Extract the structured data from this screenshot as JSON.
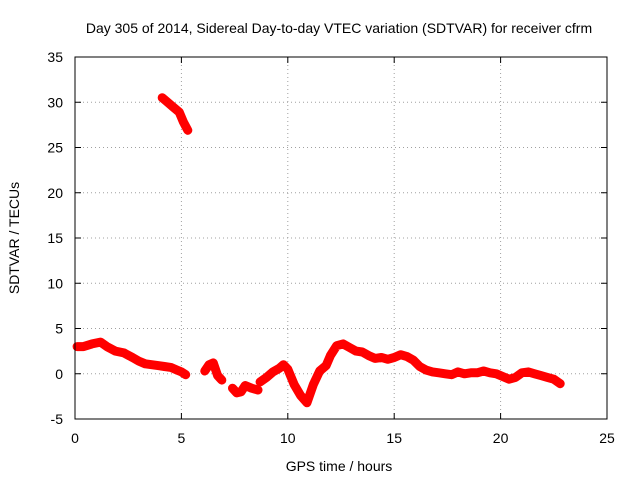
{
  "chart_data": {
    "type": "scatter",
    "title": "Day 305 of 2014, Sidereal Day-to-day VTEC variation (SDTVAR) for receiver cfrm",
    "xlabel": "GPS time / hours",
    "ylabel": "SDTVAR / TECUs",
    "xlim": [
      0,
      25
    ],
    "ylim": [
      -5,
      35
    ],
    "xticks": [
      0,
      5,
      10,
      15,
      20,
      25
    ],
    "yticks": [
      -5,
      0,
      5,
      10,
      15,
      20,
      25,
      30,
      35
    ],
    "grid": true,
    "legend": "none",
    "series_color": "#ff0000",
    "series": [
      {
        "name": "segment-1",
        "x": [
          0.1,
          0.4,
          0.8,
          1.2,
          1.5,
          1.9,
          2.3,
          2.7,
          3.0,
          3.3,
          3.6,
          3.9,
          4.2,
          4.5,
          4.8,
          5.0,
          5.2
        ],
        "y": [
          3.0,
          3.0,
          3.3,
          3.5,
          3.0,
          2.5,
          2.3,
          1.8,
          1.4,
          1.1,
          1.0,
          0.9,
          0.8,
          0.7,
          0.4,
          0.2,
          -0.1
        ]
      },
      {
        "name": "segment-2",
        "x": [
          4.1,
          4.3,
          4.6,
          4.9,
          5.1,
          5.3
        ],
        "y": [
          30.5,
          30.1,
          29.5,
          28.9,
          27.8,
          26.9
        ]
      },
      {
        "name": "segment-3",
        "x": [
          6.1,
          6.3,
          6.5,
          6.7,
          6.9
        ],
        "y": [
          0.3,
          1.0,
          1.2,
          -0.2,
          -0.7
        ]
      },
      {
        "name": "segment-4",
        "x": [
          7.4,
          7.6,
          7.8,
          8.0,
          8.3,
          8.6
        ],
        "y": [
          -1.6,
          -2.1,
          -2.0,
          -1.3,
          -1.6,
          -1.8
        ]
      },
      {
        "name": "segment-5",
        "x": [
          8.7,
          9.0,
          9.3,
          9.6,
          9.8,
          10.0,
          10.3,
          10.6,
          10.9,
          11.2,
          11.5,
          11.8,
          12.0,
          12.3,
          12.6,
          12.9,
          13.2,
          13.5,
          13.8,
          14.1,
          14.4,
          14.7,
          15.0,
          15.3,
          15.6,
          15.9,
          16.2,
          16.5,
          16.8,
          17.1,
          17.4,
          17.7,
          18.0,
          18.3,
          18.6,
          18.9,
          19.2,
          19.5,
          19.8,
          20.1,
          20.4,
          20.7,
          21.0,
          21.3,
          21.6,
          21.9,
          22.2,
          22.5,
          22.8
        ],
        "y": [
          -0.9,
          -0.4,
          0.2,
          0.6,
          1.0,
          0.5,
          -1.2,
          -2.4,
          -3.2,
          -1.2,
          0.3,
          0.9,
          2.0,
          3.1,
          3.3,
          2.9,
          2.5,
          2.4,
          2.0,
          1.7,
          1.8,
          1.6,
          1.8,
          2.1,
          1.9,
          1.5,
          0.8,
          0.4,
          0.2,
          0.1,
          0.0,
          -0.1,
          0.2,
          0.0,
          0.1,
          0.1,
          0.3,
          0.1,
          0.0,
          -0.3,
          -0.6,
          -0.4,
          0.1,
          0.2,
          0.0,
          -0.2,
          -0.4,
          -0.6,
          -1.1
        ]
      }
    ]
  }
}
